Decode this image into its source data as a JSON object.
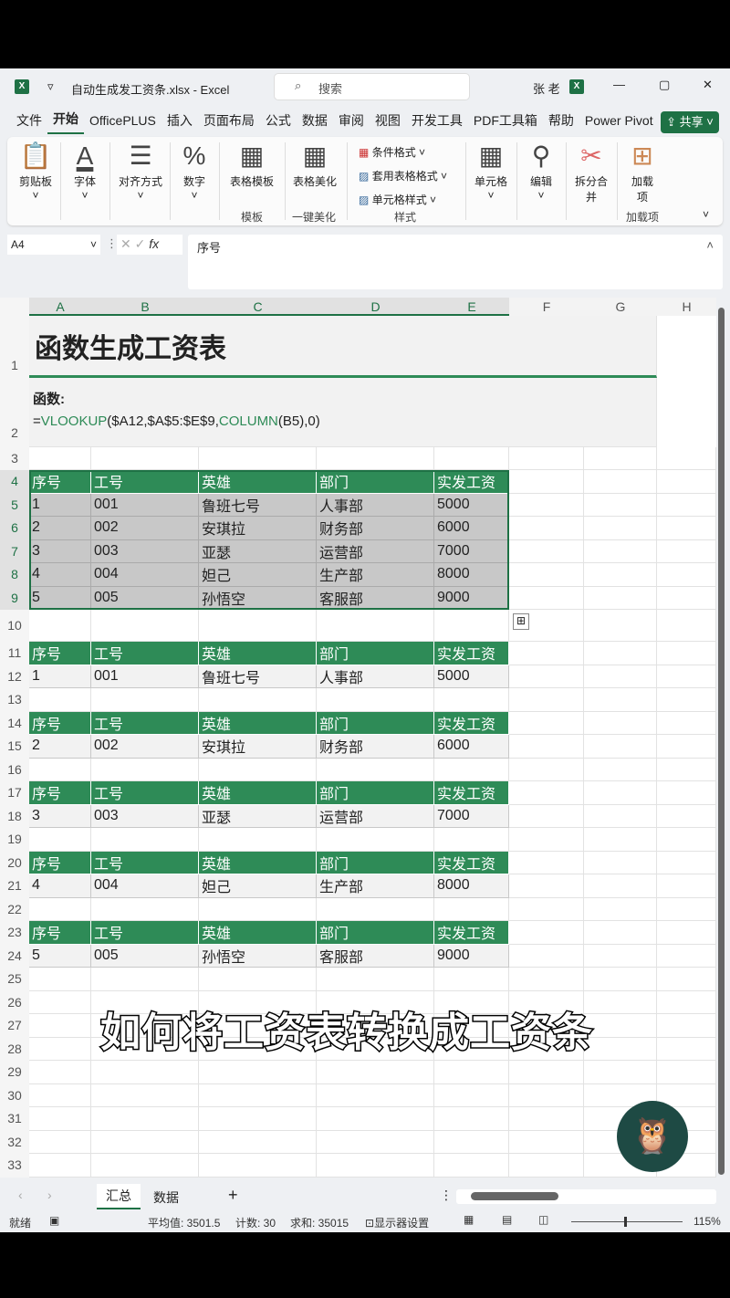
{
  "window": {
    "title": "自动生成发工资条.xlsx  -  Excel",
    "search_placeholder": "搜索",
    "user": "张 老",
    "min": "—",
    "max": "▢",
    "close": "✕"
  },
  "menu": [
    "文件",
    "开始",
    "OfficePLUS",
    "插入",
    "页面布局",
    "公式",
    "数据",
    "审阅",
    "视图",
    "开发工具",
    "PDF工具箱",
    "帮助",
    "Power Pivot"
  ],
  "share": "共享",
  "ribbon": {
    "clipboard": "剪贴板",
    "font": "字体",
    "align": "对齐方式",
    "number": "数字",
    "template": "表格模板",
    "beautify": "表格美化",
    "cond": "条件格式",
    "tablefmt": "套用表格格式",
    "cellstyle": "单元格样式",
    "cells": "单元格",
    "edit": "编辑",
    "split": "拆分合并",
    "addin": "加载项",
    "g_template": "模板",
    "g_beautify": "一键美化",
    "g_style": "样式",
    "g_addin": "加载项"
  },
  "formula_bar": {
    "name_box": "A4",
    "content": "序号"
  },
  "columns": [
    "A",
    "B",
    "C",
    "D",
    "E",
    "F",
    "G",
    "H"
  ],
  "title": "函数生成工资表",
  "func_label": "函数:",
  "formula": {
    "eq": "=",
    "f1": "VLOOKUP",
    "a1": "($A12,$A$5:$E$9,",
    "f2": "COLUMN",
    "a2": "(B5),0)"
  },
  "headers": [
    "序号",
    "工号",
    "英雄",
    "部门",
    "实发工资"
  ],
  "table": [
    [
      "1",
      "001",
      "鲁班七号",
      "人事部",
      "5000"
    ],
    [
      "2",
      "002",
      "安琪拉",
      "财务部",
      "6000"
    ],
    [
      "3",
      "003",
      "亚瑟",
      "运营部",
      "7000"
    ],
    [
      "4",
      "004",
      "妲己",
      "生产部",
      "8000"
    ],
    [
      "5",
      "005",
      "孙悟空",
      "客服部",
      "9000"
    ]
  ],
  "caption": "如何将工资表转换成工资条",
  "sheets": [
    "汇总",
    "数据"
  ],
  "status": {
    "ready": "就绪",
    "avg": "平均值: 3501.5",
    "count": "计数: 30",
    "sum": "求和: 35015",
    "display": "显示器设置",
    "zoom": "115%"
  },
  "colors": {
    "accent": "#2e8b57",
    "excel": "#1e7145"
  }
}
